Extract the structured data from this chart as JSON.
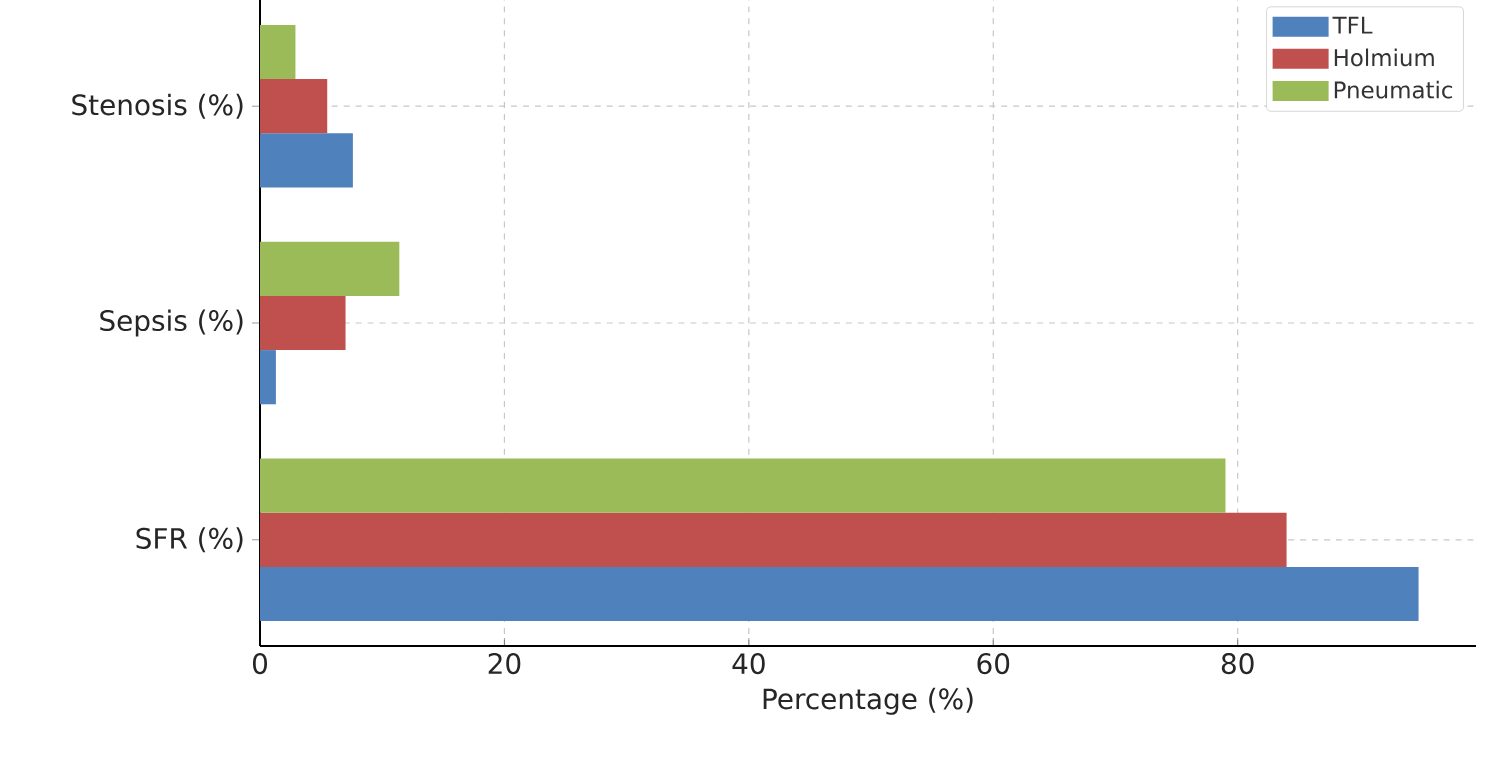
{
  "chart_data": {
    "type": "bar",
    "orientation": "horizontal",
    "xlabel": "Percentage (%)",
    "categories": [
      "Stenosis (%)",
      "Sepsis (%)",
      "SFR (%)"
    ],
    "series": [
      {
        "name": "TFL",
        "color": "#4f81bd",
        "values": [
          7.6,
          1.3,
          94.8
        ]
      },
      {
        "name": "Holmium",
        "color": "#c0504d",
        "values": [
          5.5,
          7.0,
          84.0
        ]
      },
      {
        "name": "Pneumatic",
        "color": "#9bbb59",
        "values": [
          2.9,
          11.4,
          79.0
        ]
      }
    ],
    "xlim": [
      0,
      99.5
    ],
    "xticks": [
      0,
      20,
      40,
      60,
      80
    ],
    "grid": true,
    "legend": "top right"
  }
}
